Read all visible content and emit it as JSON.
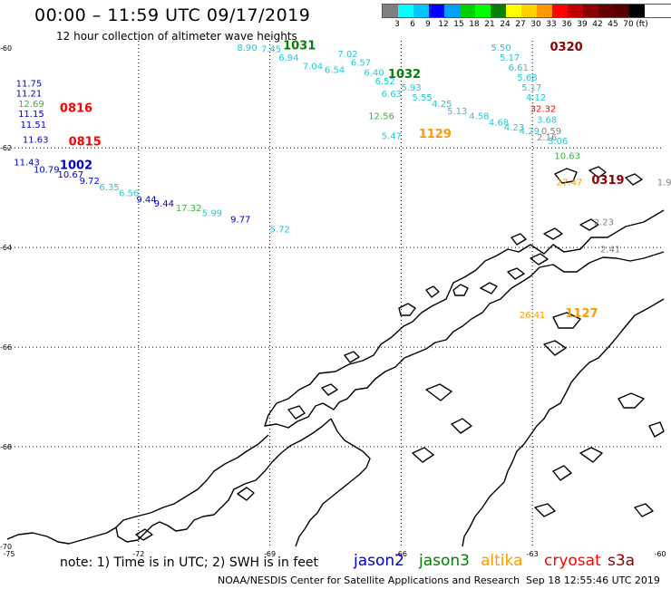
{
  "header": {
    "title": "00:00 – 11:59 UTC 09/17/2019",
    "subtitle": "12 hour collection of altimeter wave heights"
  },
  "legend": {
    "colors": [
      "#7f7f7f",
      "#00ffff",
      "#00c8ff",
      "#0000ff",
      "#00a0ff",
      "#00d000",
      "#00ff00",
      "#008000",
      "#ffff00",
      "#ffd000",
      "#ff9900",
      "#ff0000",
      "#c00000",
      "#8b0000",
      "#660000",
      "#550000",
      "#000000"
    ],
    "labels": [
      "3",
      "6",
      "9",
      "12",
      "15",
      "18",
      "21",
      "24",
      "27",
      "30",
      "33",
      "36",
      "39",
      "42",
      "45",
      "70",
      "(ft)"
    ]
  },
  "map": {
    "lat_labels": [
      "-60",
      "-62",
      "-64",
      "-66",
      "-68",
      "-70"
    ],
    "lon_labels": [
      "-75",
      "-72",
      "-69",
      "-66",
      "-63",
      "-60"
    ],
    "colors": {
      "jason2": "#0000c8",
      "jason3": "#008000",
      "altika": "#ff9900",
      "cryosat": "#ff0000",
      "s3a": "#8b0000",
      "cyan": "#22c8d8",
      "gray": "#808080",
      "lightgreen": "#3cb43c",
      "coast": "#000000"
    },
    "tracks": [
      {
        "id": "0816",
        "mission": "cryosat",
        "color": "cryosat",
        "marks": [
          {
            "lon": -74.8,
            "lat": -60.77,
            "v": "11.75",
            "c": "jason2"
          },
          {
            "lon": -74.8,
            "lat": -60.97,
            "v": "11.21",
            "c": "jason2"
          },
          {
            "lon": -74.75,
            "lat": -61.18,
            "v": "12.69",
            "c": "lightgreen"
          },
          {
            "lon": -74.75,
            "lat": -61.38,
            "v": "11.15",
            "c": "jason2"
          },
          {
            "lon": -74.7,
            "lat": -61.6,
            "v": "11.51",
            "c": "jason2"
          },
          {
            "lon": -74.65,
            "lat": -61.9,
            "v": "11.63",
            "c": "jason2"
          }
        ]
      },
      {
        "id": "0815",
        "mission": "cryosat",
        "color": "cryosat",
        "marks": []
      },
      {
        "id": "1002",
        "mission": "jason2",
        "color": "jason2",
        "marks": [
          {
            "lon": -74.85,
            "lat": -62.35,
            "v": "11.43",
            "c": "jason2"
          },
          {
            "lon": -74.4,
            "lat": -62.5,
            "v": "10.79",
            "c": "jason2"
          },
          {
            "lon": -73.85,
            "lat": -62.6,
            "v": "10.67",
            "c": "jason2"
          },
          {
            "lon": -73.35,
            "lat": -62.72,
            "v": "9.72",
            "c": "jason2"
          },
          {
            "lon": -72.9,
            "lat": -62.85,
            "v": "6.35",
            "c": "cyan"
          },
          {
            "lon": -72.45,
            "lat": -62.97,
            "v": "6.56",
            "c": "cyan"
          },
          {
            "lon": -72.05,
            "lat": -63.1,
            "v": "9.44",
            "c": "jason2"
          },
          {
            "lon": -71.65,
            "lat": -63.18,
            "v": "9.44",
            "c": "jason2"
          },
          {
            "lon": -71.15,
            "lat": -63.27,
            "v": "17.32",
            "c": "lightgreen"
          },
          {
            "lon": -70.55,
            "lat": -63.37,
            "v": "5.99",
            "c": "cyan"
          },
          {
            "lon": -69.9,
            "lat": -63.5,
            "v": "9.77",
            "c": "jason2"
          },
          {
            "lon": -69.0,
            "lat": -63.7,
            "v": "5.72",
            "c": "cyan"
          }
        ]
      },
      {
        "id": "1031",
        "mission": "jason3",
        "color": "jason3",
        "marks": [
          {
            "lon": -69.75,
            "lat": -60.05,
            "v": "8.90",
            "c": "cyan"
          },
          {
            "lon": -69.2,
            "lat": -60.08,
            "v": "7.45",
            "c": "cyan"
          },
          {
            "lon": -68.8,
            "lat": -60.25,
            "v": "6.94",
            "c": "cyan"
          },
          {
            "lon": -68.25,
            "lat": -60.42,
            "v": "7.04",
            "c": "cyan"
          },
          {
            "lon": -67.75,
            "lat": -60.5,
            "v": "6.54",
            "c": "cyan"
          },
          {
            "lon": -67.45,
            "lat": -60.18,
            "v": "7.02",
            "c": "cyan"
          },
          {
            "lon": -67.15,
            "lat": -60.35,
            "v": "6.57",
            "c": "cyan"
          },
          {
            "lon": -66.85,
            "lat": -60.55,
            "v": "6.40",
            "c": "cyan"
          },
          {
            "lon": -66.6,
            "lat": -60.72,
            "v": "6.52",
            "c": "cyan"
          },
          {
            "lon": -66.45,
            "lat": -60.98,
            "v": "6.63",
            "c": "cyan"
          }
        ]
      },
      {
        "id": "1032",
        "mission": "jason3",
        "color": "jason3",
        "marks": [
          {
            "lon": -66.0,
            "lat": -60.85,
            "v": "5.93",
            "c": "cyan"
          },
          {
            "lon": -65.75,
            "lat": -61.05,
            "v": "5.55",
            "c": "cyan"
          },
          {
            "lon": -65.3,
            "lat": -61.18,
            "v": "4.25",
            "c": "cyan"
          },
          {
            "lon": -64.95,
            "lat": -61.32,
            "v": "5.13",
            "c": "cyan"
          },
          {
            "lon": -64.45,
            "lat": -61.42,
            "v": "4.58",
            "c": "cyan"
          },
          {
            "lon": -64.0,
            "lat": -61.55,
            "v": "4.68",
            "c": "cyan"
          },
          {
            "lon": -63.65,
            "lat": -61.65,
            "v": "4.23",
            "c": "cyan"
          },
          {
            "lon": -63.3,
            "lat": -61.72,
            "v": "4.29",
            "c": "cyan"
          },
          {
            "lon": -66.75,
            "lat": -61.42,
            "v": "12.56",
            "c": "lightgreen"
          },
          {
            "lon": -66.45,
            "lat": -61.82,
            "v": "5.47",
            "c": "cyan"
          }
        ]
      },
      {
        "id": "1129",
        "mission": "altika",
        "color": "altika",
        "marks": []
      },
      {
        "id": "0320",
        "mission": "s3a",
        "color": "s3a",
        "marks": [
          {
            "lon": -63.95,
            "lat": -60.05,
            "v": "5.50",
            "c": "cyan"
          },
          {
            "lon": -63.75,
            "lat": -60.25,
            "v": "5.17",
            "c": "cyan"
          },
          {
            "lon": -63.55,
            "lat": -60.45,
            "v": "6.61",
            "c": "cyan"
          },
          {
            "lon": -63.35,
            "lat": -60.65,
            "v": "5.68",
            "c": "cyan"
          },
          {
            "lon": -63.25,
            "lat": -60.85,
            "v": "5.17",
            "c": "cyan"
          },
          {
            "lon": -63.15,
            "lat": -61.05,
            "v": "4.12",
            "c": "cyan"
          },
          {
            "lon": -63.05,
            "lat": -61.28,
            "v": "32.32",
            "c": "cryosat"
          },
          {
            "lon": -62.9,
            "lat": -61.5,
            "v": "3.68",
            "c": "cyan"
          },
          {
            "lon": -62.8,
            "lat": -61.72,
            "v": "0.59",
            "c": "gray"
          },
          {
            "lon": -62.65,
            "lat": -61.92,
            "v": "3.06",
            "c": "cyan"
          },
          {
            "lon": -62.5,
            "lat": -62.22,
            "v": "10.63",
            "c": "lightgreen"
          }
        ]
      },
      {
        "id": "0319",
        "mission": "s3a",
        "color": "s3a",
        "marks": [
          {
            "lon": -62.45,
            "lat": -62.75,
            "v": "27.47",
            "c": "altika"
          },
          {
            "lon": -60.15,
            "lat": -62.75,
            "v": "1.9",
            "c": "gray"
          },
          {
            "lon": -61.6,
            "lat": -63.55,
            "v": "2.23",
            "c": "gray"
          },
          {
            "lon": -61.45,
            "lat": -64.1,
            "v": "2.41",
            "c": "gray"
          },
          {
            "lon": -62.9,
            "lat": -61.85,
            "v": "2.16",
            "c": "gray"
          }
        ]
      },
      {
        "id": "1127",
        "mission": "altika",
        "color": "altika",
        "marks": [
          {
            "lon": -63.3,
            "lat": -65.42,
            "v": "26.41",
            "c": "altika"
          }
        ]
      }
    ],
    "track_labels": [
      {
        "id": "0816",
        "lon": -73.8,
        "lat": -61.28,
        "c": "cryosat"
      },
      {
        "id": "0815",
        "lon": -73.6,
        "lat": -61.95,
        "c": "cryosat"
      },
      {
        "id": "1002",
        "lon": -73.8,
        "lat": -62.42,
        "c": "jason2"
      },
      {
        "id": "1031",
        "lon": -68.7,
        "lat": -60.02,
        "c": "jason3"
      },
      {
        "id": "1032",
        "lon": -66.3,
        "lat": -60.6,
        "c": "jason3"
      },
      {
        "id": "1129",
        "lon": -65.6,
        "lat": -61.8,
        "c": "altika"
      },
      {
        "id": "0320",
        "lon": -62.6,
        "lat": -60.05,
        "c": "s3a"
      },
      {
        "id": "0319",
        "lon": -61.65,
        "lat": -62.72,
        "c": "s3a"
      },
      {
        "id": "1127",
        "lon": -62.25,
        "lat": -65.4,
        "c": "altika"
      }
    ]
  },
  "footer": {
    "note": "note: 1) Time is in UTC; 2) SWH is in feet",
    "missions": [
      {
        "name": "jason2",
        "color": "#0000c8"
      },
      {
        "name": "jason3",
        "color": "#008000"
      },
      {
        "name": "altika",
        "color": "#ff9900"
      },
      {
        "name": "cryosat",
        "color": "#ff0000"
      },
      {
        "name": "s3a",
        "color": "#8b0000"
      }
    ],
    "credit": "NOAA/NESDIS Center for Satellite Applications and Research",
    "timestamp": "Sep 18 12:55:46 UTC 2019"
  }
}
